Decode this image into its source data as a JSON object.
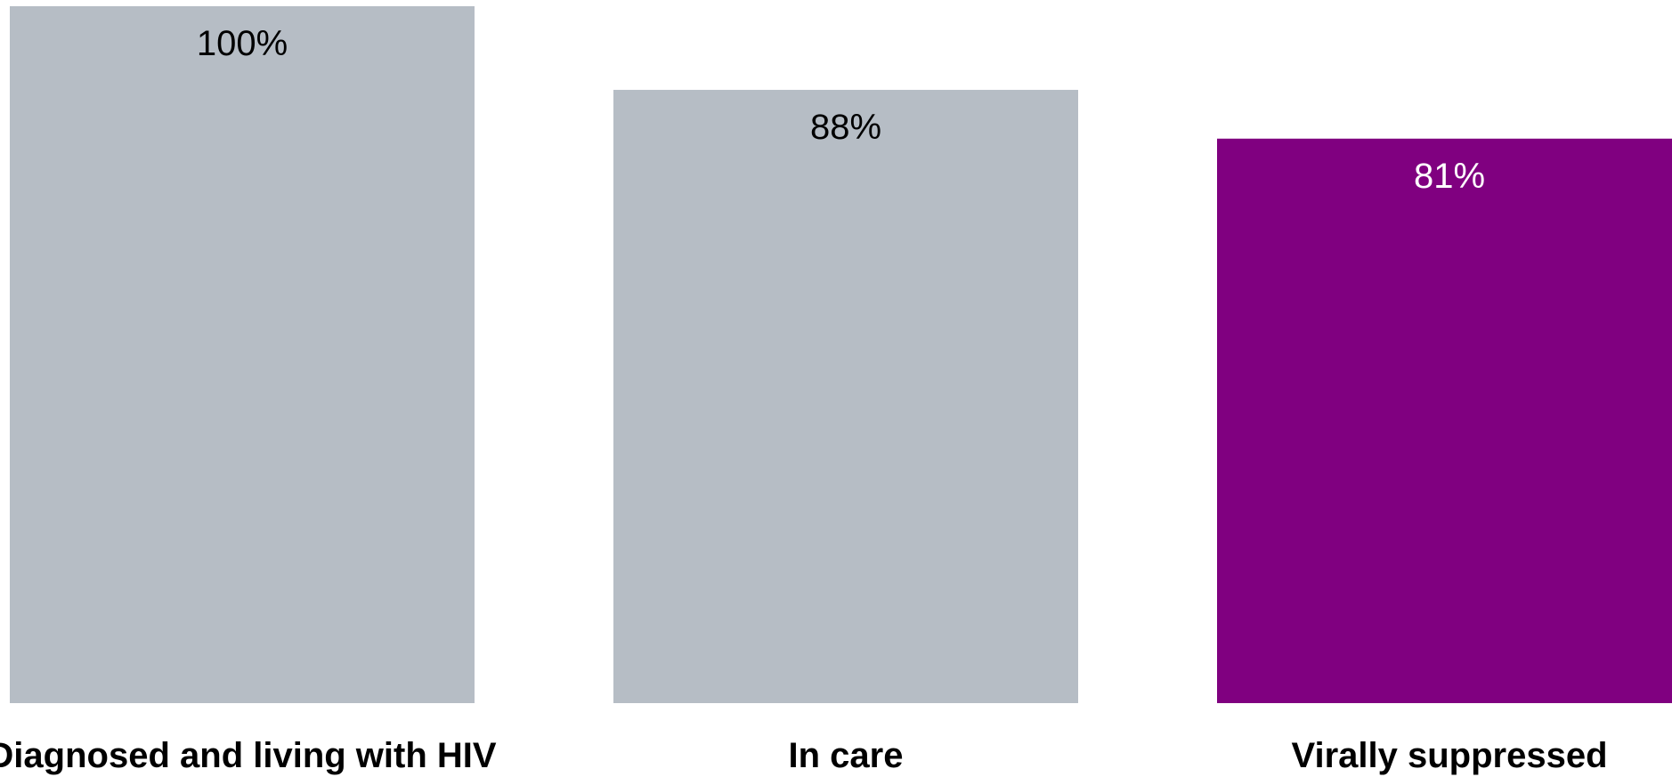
{
  "chart_data": {
    "type": "bar",
    "categories": [
      "Diagnosed and living with HIV",
      "In care",
      "Virally suppressed"
    ],
    "values": [
      100,
      88,
      81
    ],
    "value_labels": [
      "100%",
      "88%",
      "81%"
    ],
    "bar_colors": [
      "#b6bdc5",
      "#b6bdc5",
      "#800080"
    ],
    "label_colors": [
      "#000000",
      "#000000",
      "#ffffff"
    ],
    "ylim": [
      0,
      100
    ],
    "grid": false,
    "legend": "none"
  }
}
